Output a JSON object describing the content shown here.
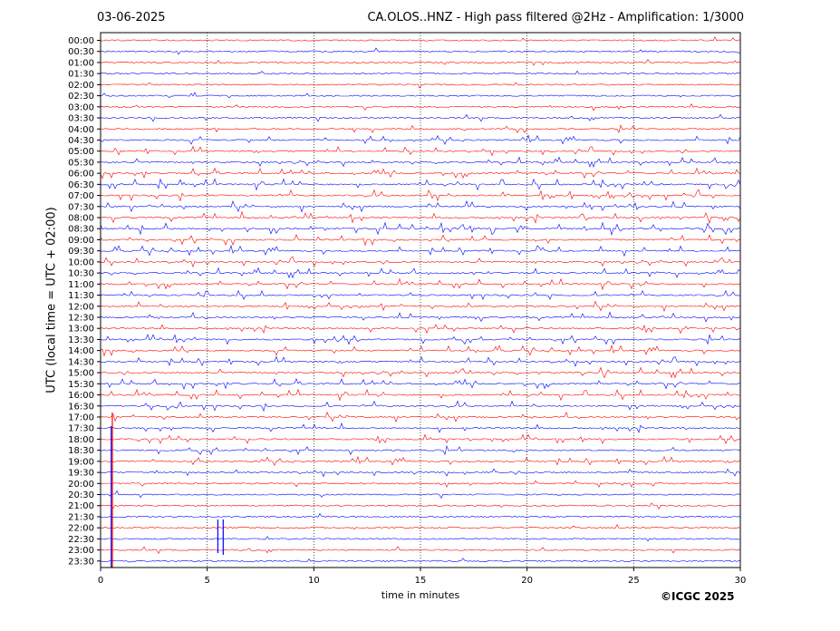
{
  "header": {
    "date": "03-06-2025",
    "title": "CA.OLOS..HNZ - High pass filtered @2Hz - Amplification: 1/3000"
  },
  "footer": {
    "copyright": "©ICGC 2025"
  },
  "chart_data": {
    "type": "line",
    "title": "CA.OLOS..HNZ - High pass filtered @2Hz - Amplification: 1/3000",
    "xlabel": "time in minutes",
    "ylabel": "UTC (local time = UTC + 02:00)",
    "xlim": [
      0,
      30
    ],
    "xticks": [
      "0",
      "5",
      "10",
      "15",
      "20",
      "25",
      "30"
    ],
    "yticks": [
      "00:00",
      "00:30",
      "01:00",
      "01:30",
      "02:00",
      "02:30",
      "03:00",
      "03:30",
      "04:00",
      "04:30",
      "05:00",
      "05:30",
      "06:00",
      "06:30",
      "07:00",
      "07:30",
      "08:00",
      "08:30",
      "09:00",
      "09:30",
      "10:00",
      "10:30",
      "11:00",
      "11:30",
      "12:00",
      "12:30",
      "13:00",
      "13:30",
      "14:00",
      "14:30",
      "15:00",
      "15:30",
      "16:00",
      "16:30",
      "17:00",
      "17:30",
      "18:00",
      "18:30",
      "19:00",
      "19:30",
      "20:00",
      "20:30",
      "21:00",
      "21:30",
      "22:00",
      "22:30",
      "23:00",
      "23:30"
    ],
    "series_colors": [
      "#ff0000",
      "#0000ff"
    ],
    "trace_activity": [
      0.03,
      0.05,
      0.03,
      0.03,
      0.03,
      0.05,
      0.15,
      0.1,
      0.15,
      0.35,
      0.35,
      0.4,
      0.45,
      0.55,
      0.6,
      0.55,
      0.6,
      0.7,
      0.5,
      0.45,
      0.45,
      0.4,
      0.45,
      0.35,
      0.4,
      0.4,
      0.35,
      0.4,
      0.45,
      0.4,
      0.45,
      0.45,
      0.5,
      0.45,
      0.4,
      0.35,
      0.3,
      0.3,
      0.3,
      0.25,
      0.15,
      0.12,
      0.1,
      0.05,
      0.05,
      0.05,
      0.1,
      0.05
    ],
    "grid": "vertical dotted at each tick",
    "legend": "none"
  }
}
